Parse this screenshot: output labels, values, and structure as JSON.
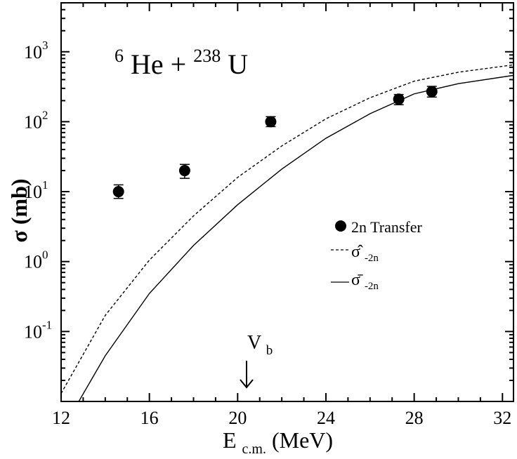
{
  "chart_data": {
    "type": "scatter",
    "title": "",
    "annotation": {
      "label_sup1": "6",
      "label_elem1": "He + ",
      "label_sup2": "238",
      "label_elem2": "U"
    },
    "xlabel": {
      "main": "E",
      "sub": "c.m.",
      "unit": " (MeV)"
    },
    "ylabel": "σ (mb)",
    "xlim": [
      12,
      32.5
    ],
    "ylim_log10": [
      -2.0,
      3.7
    ],
    "x_scale": "linear",
    "y_scale": "log",
    "x_ticks": [
      12,
      16,
      20,
      24,
      28,
      32
    ],
    "x_tick_labels": [
      "12",
      "16",
      "20",
      "24",
      "28",
      "32"
    ],
    "y_ticks_log10": [
      -1,
      0,
      1,
      2,
      3
    ],
    "y_tick_labels": [
      {
        "base": "10",
        "exp": "-1"
      },
      {
        "base": "10",
        "exp": "0"
      },
      {
        "base": "10",
        "exp": "1"
      },
      {
        "base": "10",
        "exp": "2"
      },
      {
        "base": "10",
        "exp": "3"
      }
    ],
    "grid": false,
    "legend_position": "right-middle",
    "series": [
      {
        "name": "2n Transfer",
        "style": "markers-with-errorbars",
        "x": [
          14.6,
          17.6,
          21.5,
          27.3,
          28.8
        ],
        "y": [
          10,
          20,
          100,
          210,
          270
        ],
        "y_err_low": [
          8,
          15.5,
          85,
          175,
          225
        ],
        "y_err_high": [
          12.5,
          24.5,
          118,
          245,
          320
        ]
      },
      {
        "name": "σ̂-2n",
        "legend_symbol": "σ̂",
        "legend_sub": "-2n",
        "style": "dashed",
        "x": [
          12,
          14,
          16,
          18,
          20,
          22,
          24,
          26,
          28,
          30,
          32.5
        ],
        "y": [
          0.013,
          0.17,
          1.05,
          4.5,
          16,
          45,
          110,
          220,
          380,
          510,
          650
        ]
      },
      {
        "name": "σ̄-2n",
        "legend_symbol": "σ̄",
        "legend_sub": "-2n",
        "style": "solid",
        "x": [
          12.8,
          14,
          16,
          18,
          20,
          22,
          24,
          26,
          28,
          30,
          32.5
        ],
        "y": [
          0.01,
          0.045,
          0.35,
          1.7,
          6.5,
          21,
          58,
          130,
          250,
          350,
          460
        ]
      }
    ],
    "vb_marker": {
      "label_main": "V",
      "label_sub": "b",
      "x": 20.4
    }
  }
}
